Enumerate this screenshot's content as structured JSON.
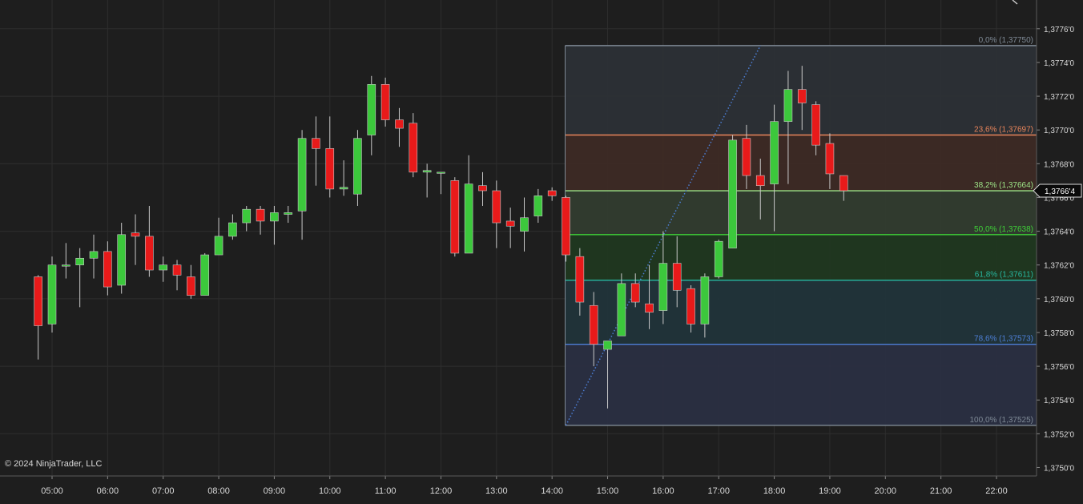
{
  "chart_data": {
    "type": "candlestick",
    "x_axis": {
      "ticks": [
        "05:00",
        "06:00",
        "07:00",
        "08:00",
        "09:00",
        "10:00",
        "11:00",
        "12:00",
        "13:00",
        "14:00",
        "15:00",
        "16:00",
        "17:00",
        "18:00",
        "19:00",
        "20:00",
        "21:00",
        "22:00"
      ],
      "bar_interval_minutes": 15,
      "first_bar_time": "04:45"
    },
    "y_axis": {
      "ylim": [
        1.37495,
        1.37777
      ],
      "ticks": [
        {
          "value": 1.375,
          "label": "1,3750'0"
        },
        {
          "value": 1.3752,
          "label": "1,3752'0"
        },
        {
          "value": 1.3754,
          "label": "1,3754'0"
        },
        {
          "value": 1.3756,
          "label": "1,3756'0"
        },
        {
          "value": 1.3758,
          "label": "1,3758'0"
        },
        {
          "value": 1.376,
          "label": "1,3760'0"
        },
        {
          "value": 1.3762,
          "label": "1,3762'0"
        },
        {
          "value": 1.3764,
          "label": "1,3764'0"
        },
        {
          "value": 1.3766,
          "label": "1,3766'0"
        },
        {
          "value": 1.3768,
          "label": "1,3768'0"
        },
        {
          "value": 1.377,
          "label": "1,3770'0"
        },
        {
          "value": 1.3772,
          "label": "1,3772'0"
        },
        {
          "value": 1.3774,
          "label": "1,3774'0"
        },
        {
          "value": 1.3776,
          "label": "1,3776'0"
        }
      ]
    },
    "candles": [
      {
        "o": 1.37613,
        "h": 1.37614,
        "l": 1.37564,
        "c": 1.37584
      },
      {
        "o": 1.37585,
        "h": 1.37625,
        "l": 1.3758,
        "c": 1.3762
      },
      {
        "o": 1.3762,
        "h": 1.37633,
        "l": 1.37612,
        "c": 1.3762
      },
      {
        "o": 1.3762,
        "h": 1.3763,
        "l": 1.37595,
        "c": 1.37624
      },
      {
        "o": 1.37624,
        "h": 1.37638,
        "l": 1.37612,
        "c": 1.37628
      },
      {
        "o": 1.37628,
        "h": 1.37634,
        "l": 1.37602,
        "c": 1.37607
      },
      {
        "o": 1.37608,
        "h": 1.37645,
        "l": 1.37603,
        "c": 1.37638
      },
      {
        "o": 1.37639,
        "h": 1.3765,
        "l": 1.3762,
        "c": 1.37637
      },
      {
        "o": 1.37637,
        "h": 1.37655,
        "l": 1.37613,
        "c": 1.37617
      },
      {
        "o": 1.37617,
        "h": 1.37625,
        "l": 1.3761,
        "c": 1.3762
      },
      {
        "o": 1.3762,
        "h": 1.37623,
        "l": 1.37605,
        "c": 1.37614
      },
      {
        "o": 1.37613,
        "h": 1.3762,
        "l": 1.376,
        "c": 1.37602
      },
      {
        "o": 1.37602,
        "h": 1.37627,
        "l": 1.37602,
        "c": 1.37626
      },
      {
        "o": 1.37626,
        "h": 1.37648,
        "l": 1.37626,
        "c": 1.37637
      },
      {
        "o": 1.37637,
        "h": 1.3765,
        "l": 1.37635,
        "c": 1.37645
      },
      {
        "o": 1.37645,
        "h": 1.37655,
        "l": 1.3764,
        "c": 1.37653
      },
      {
        "o": 1.37653,
        "h": 1.37655,
        "l": 1.37638,
        "c": 1.37646
      },
      {
        "o": 1.37646,
        "h": 1.37655,
        "l": 1.37632,
        "c": 1.37651
      },
      {
        "o": 1.3765,
        "h": 1.37655,
        "l": 1.37645,
        "c": 1.37651
      },
      {
        "o": 1.37652,
        "h": 1.377,
        "l": 1.37635,
        "c": 1.37695
      },
      {
        "o": 1.37695,
        "h": 1.37708,
        "l": 1.37667,
        "c": 1.37689
      },
      {
        "o": 1.37689,
        "h": 1.37708,
        "l": 1.3766,
        "c": 1.37665
      },
      {
        "o": 1.37665,
        "h": 1.37682,
        "l": 1.37661,
        "c": 1.37666
      },
      {
        "o": 1.37662,
        "h": 1.377,
        "l": 1.37655,
        "c": 1.37695
      },
      {
        "o": 1.37697,
        "h": 1.37732,
        "l": 1.37685,
        "c": 1.37727
      },
      {
        "o": 1.37727,
        "h": 1.37731,
        "l": 1.37702,
        "c": 1.37706
      },
      {
        "o": 1.37706,
        "h": 1.37713,
        "l": 1.3769,
        "c": 1.37701
      },
      {
        "o": 1.37704,
        "h": 1.3771,
        "l": 1.37672,
        "c": 1.37675
      },
      {
        "o": 1.37675,
        "h": 1.3768,
        "l": 1.3766,
        "c": 1.37676
      },
      {
        "o": 1.37675,
        "h": 1.37675,
        "l": 1.37662,
        "c": 1.37675
      },
      {
        "o": 1.3767,
        "h": 1.37672,
        "l": 1.37625,
        "c": 1.37627
      },
      {
        "o": 1.37627,
        "h": 1.37685,
        "l": 1.37627,
        "c": 1.37668
      },
      {
        "o": 1.37667,
        "h": 1.37675,
        "l": 1.37655,
        "c": 1.37664
      },
      {
        "o": 1.37664,
        "h": 1.3767,
        "l": 1.3763,
        "c": 1.37645
      },
      {
        "o": 1.37646,
        "h": 1.37654,
        "l": 1.3763,
        "c": 1.37643
      },
      {
        "o": 1.3764,
        "h": 1.3766,
        "l": 1.37628,
        "c": 1.37648
      },
      {
        "o": 1.37649,
        "h": 1.37665,
        "l": 1.37645,
        "c": 1.37661
      },
      {
        "o": 1.37664,
        "h": 1.37666,
        "l": 1.37658,
        "c": 1.37661
      },
      {
        "o": 1.3766,
        "h": 1.37661,
        "l": 1.37622,
        "c": 1.37626
      },
      {
        "o": 1.37625,
        "h": 1.3763,
        "l": 1.3759,
        "c": 1.37598
      },
      {
        "o": 1.37596,
        "h": 1.37604,
        "l": 1.3756,
        "c": 1.37573
      },
      {
        "o": 1.3757,
        "h": 1.37575,
        "l": 1.37535,
        "c": 1.37575
      },
      {
        "o": 1.37578,
        "h": 1.37615,
        "l": 1.37578,
        "c": 1.37609
      },
      {
        "o": 1.37609,
        "h": 1.37615,
        "l": 1.37595,
        "c": 1.37598
      },
      {
        "o": 1.37597,
        "h": 1.3762,
        "l": 1.37582,
        "c": 1.37592
      },
      {
        "o": 1.37593,
        "h": 1.3764,
        "l": 1.37585,
        "c": 1.37621
      },
      {
        "o": 1.37621,
        "h": 1.37637,
        "l": 1.37595,
        "c": 1.37605
      },
      {
        "o": 1.37606,
        "h": 1.37608,
        "l": 1.3758,
        "c": 1.37585
      },
      {
        "o": 1.37585,
        "h": 1.37615,
        "l": 1.37577,
        "c": 1.37613
      },
      {
        "o": 1.37613,
        "h": 1.37635,
        "l": 1.37612,
        "c": 1.37634
      },
      {
        "o": 1.3763,
        "h": 1.37697,
        "l": 1.3763,
        "c": 1.37694
      },
      {
        "o": 1.37695,
        "h": 1.37703,
        "l": 1.37665,
        "c": 1.37673
      },
      {
        "o": 1.37673,
        "h": 1.37683,
        "l": 1.37647,
        "c": 1.37667
      },
      {
        "o": 1.37668,
        "h": 1.37715,
        "l": 1.3764,
        "c": 1.37705
      },
      {
        "o": 1.37705,
        "h": 1.37735,
        "l": 1.37668,
        "c": 1.37724
      },
      {
        "o": 1.37724,
        "h": 1.37738,
        "l": 1.377,
        "c": 1.37716
      },
      {
        "o": 1.37715,
        "h": 1.37717,
        "l": 1.37685,
        "c": 1.37691
      },
      {
        "o": 1.37692,
        "h": 1.37698,
        "l": 1.37665,
        "c": 1.37674
      },
      {
        "o": 1.37673,
        "h": 1.37673,
        "l": 1.37658,
        "c": 1.37664
      }
    ],
    "fibonacci": {
      "start": {
        "time": "14:15",
        "price": 1.37525
      },
      "end": {
        "time": "17:45",
        "price": 1.3775
      },
      "levels": [
        {
          "ratio": 0.0,
          "price": 1.3775,
          "label": "0,0% (1,37750)",
          "color": "#7f8a96",
          "fill": "#2c3036"
        },
        {
          "ratio": 0.236,
          "price": 1.37697,
          "label": "23,6% (1,37697)",
          "color": "#e8845a",
          "fill": "#3d2a25"
        },
        {
          "ratio": 0.382,
          "price": 1.37664,
          "label": "38,2% (1,37664)",
          "color": "#9ee688",
          "fill": "#323c2f"
        },
        {
          "ratio": 0.5,
          "price": 1.37638,
          "label": "50,0% (1,37638)",
          "color": "#3ed038",
          "fill": "#203820"
        },
        {
          "ratio": 0.618,
          "price": 1.37611,
          "label": "61,8% (1,37611)",
          "color": "#27b7a0",
          "fill": "#21343a"
        },
        {
          "ratio": 0.786,
          "price": 1.37573,
          "label": "78,6% (1,37573)",
          "color": "#4d7fd6",
          "fill": "#2a2f42"
        },
        {
          "ratio": 1.0,
          "price": 1.37525,
          "label": "100,0% (1,37525)",
          "color": "#7f8a96",
          "fill": null
        }
      ]
    },
    "price_marker": {
      "value": 1.37664,
      "label": "1,3766'4"
    },
    "colors": {
      "background": "#1e1e1e",
      "grid": "#2e2e2e",
      "up": "#3cc83c",
      "down": "#e81a1a",
      "wick": "#c8c8c8",
      "axis_text": "#d8d8d8",
      "trend_line": "#4d7fd6"
    },
    "copyright": "© 2024 NinjaTrader, LLC"
  }
}
